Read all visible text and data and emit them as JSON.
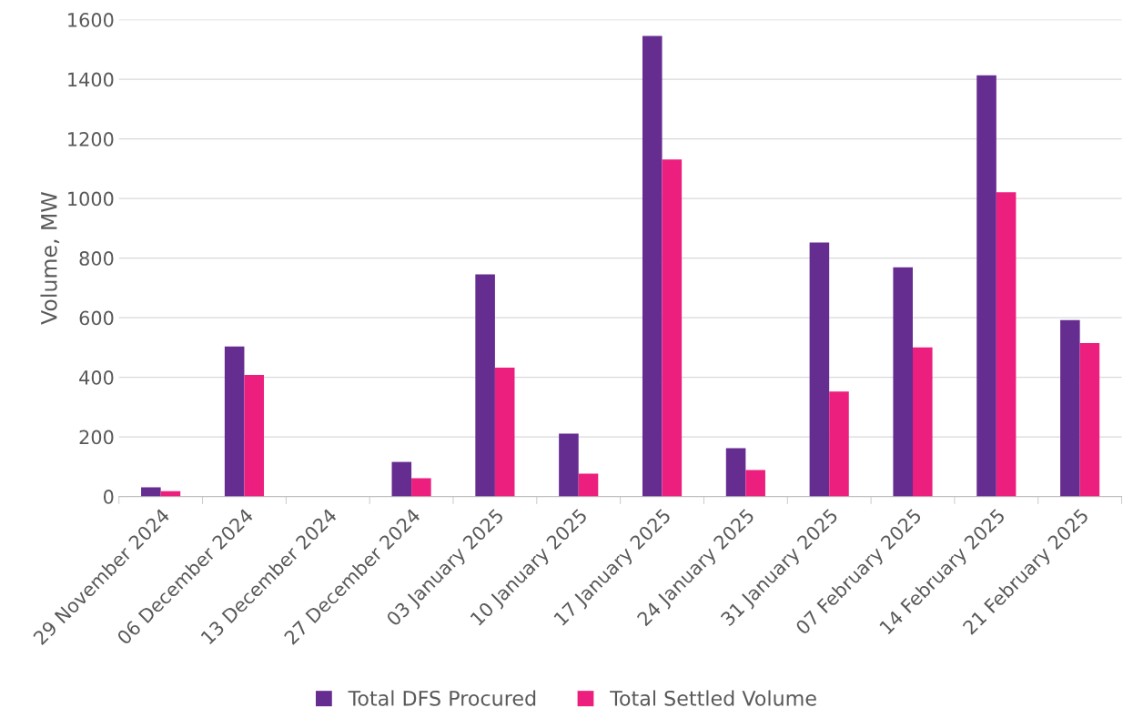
{
  "chart_data": {
    "type": "bar",
    "ylabel": "Volume, MW",
    "categories": [
      "29 November 2024",
      "06 December 2024",
      "13 December 2024",
      "27 December 2024",
      "03 January 2025",
      "10 January 2025",
      "17 January 2025",
      "24 January 2025",
      "31 January 2025",
      "07 February 2025",
      "14 February 2025",
      "21 February 2025"
    ],
    "series": [
      {
        "name": "Total DFS Procured",
        "color": "#662d91",
        "values": [
          31,
          503,
          0,
          116,
          745,
          211,
          1545,
          162,
          852,
          769,
          1413,
          592
        ]
      },
      {
        "name": "Total Settled Volume",
        "color": "#ec1f7e",
        "values": [
          18,
          408,
          0,
          61,
          432,
          77,
          1131,
          89,
          352,
          500,
          1021,
          515
        ]
      }
    ],
    "ylim": [
      0,
      1600
    ],
    "yticks": [
      0,
      200,
      400,
      600,
      800,
      1000,
      1200,
      1400,
      1600
    ],
    "grid": "y",
    "legend": "bottom"
  }
}
